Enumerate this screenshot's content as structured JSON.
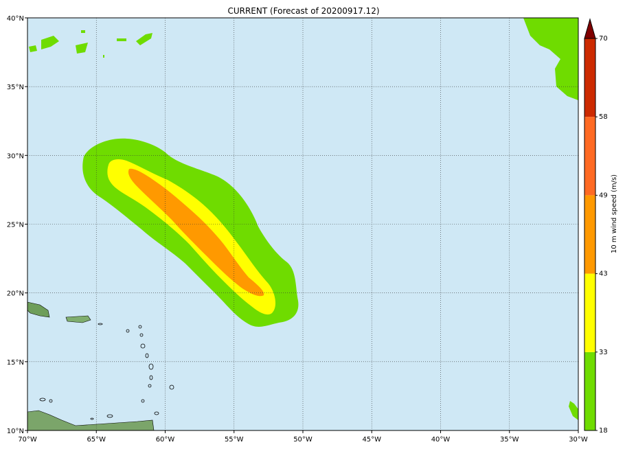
{
  "title": "CURRENT (Forecast of 20200917.12)",
  "map": {
    "lon_range": [
      -70,
      -30
    ],
    "lat_range": [
      10,
      40
    ],
    "ocean_color": "#cfe8f5",
    "gridline_style": "dotted",
    "lon_ticks": [
      {
        "value": -70,
        "label": "70°W"
      },
      {
        "value": -65,
        "label": "65°W"
      },
      {
        "value": -60,
        "label": "60°W"
      },
      {
        "value": -55,
        "label": "55°W"
      },
      {
        "value": -50,
        "label": "50°W"
      },
      {
        "value": -45,
        "label": "45°W"
      },
      {
        "value": -40,
        "label": "40°W"
      },
      {
        "value": -35,
        "label": "35°W"
      },
      {
        "value": -30,
        "label": "30°W"
      }
    ],
    "lat_ticks": [
      {
        "value": 10,
        "label": "10°N"
      },
      {
        "value": 15,
        "label": "15°N"
      },
      {
        "value": 20,
        "label": "20°N"
      },
      {
        "value": 25,
        "label": "25°N"
      },
      {
        "value": 30,
        "label": "30°N"
      },
      {
        "value": 35,
        "label": "35°N"
      },
      {
        "value": 40,
        "label": "40°N"
      }
    ]
  },
  "wind_field": {
    "description_levels": [
      {
        "min": 18,
        "max": 33,
        "color": "#6fdc00"
      },
      {
        "min": 33,
        "max": 43,
        "color": "#ffff00"
      },
      {
        "min": 43,
        "max": 49,
        "color": "#ff9900"
      }
    ],
    "outer_band_color": "#6fdc00",
    "land_green_color": "#6fdc00"
  },
  "colorbar": {
    "label": "10 m wind speed (m/s)",
    "levels": [
      18,
      33,
      43,
      49,
      58,
      70
    ],
    "level_labels": [
      "18",
      "33",
      "43",
      "49",
      "58",
      "70"
    ],
    "colors": [
      "#6fdc00",
      "#ffff00",
      "#ff9900",
      "#ff6a23",
      "#cc2a00"
    ],
    "extend_color": "#800000"
  }
}
